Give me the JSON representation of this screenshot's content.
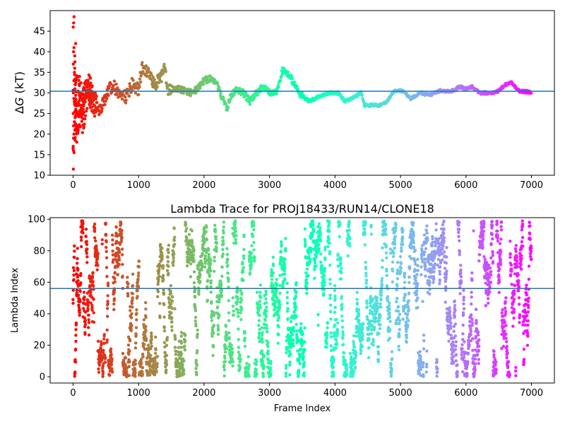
{
  "chart_data": [
    {
      "type": "scatter",
      "title": "",
      "xlabel": "",
      "ylabel": "ΔG (kT)",
      "ylabel_parts": {
        "delta": "Δ",
        "var": "G",
        "unit": " (kT)"
      },
      "xlim": [
        -350,
        7350
      ],
      "ylim": [
        10,
        50
      ],
      "xticks": [
        0,
        1000,
        2000,
        3000,
        4000,
        5000,
        6000,
        7000
      ],
      "yticks": [
        10,
        15,
        20,
        25,
        30,
        35,
        40,
        45
      ],
      "xtick_labels": [
        "0",
        "1000",
        "2000",
        "3000",
        "4000",
        "5000",
        "6000",
        "7000"
      ],
      "ytick_labels": [
        "10",
        "15",
        "20",
        "25",
        "30",
        "35",
        "40",
        "45"
      ],
      "reference_line": 30.4,
      "colormap": "rainbow (frame index, red → violet)",
      "colors": {
        "reference_line": "#1f77b4"
      },
      "trace_control_points": [
        [
          0,
          30
        ],
        [
          30,
          28
        ],
        [
          60,
          26
        ],
        [
          100,
          28
        ],
        [
          150,
          25
        ],
        [
          200,
          30
        ],
        [
          250,
          31
        ],
        [
          300,
          28
        ],
        [
          400,
          26
        ],
        [
          500,
          29
        ],
        [
          600,
          32
        ],
        [
          700,
          30
        ],
        [
          800,
          29
        ],
        [
          900,
          32
        ],
        [
          1000,
          31
        ],
        [
          1050,
          36
        ],
        [
          1150,
          35
        ],
        [
          1250,
          32
        ],
        [
          1350,
          34
        ],
        [
          1400,
          36
        ],
        [
          1450,
          31
        ],
        [
          1600,
          31
        ],
        [
          1800,
          30
        ],
        [
          1900,
          31
        ],
        [
          2000,
          33
        ],
        [
          2100,
          33.5
        ],
        [
          2200,
          32
        ],
        [
          2300,
          28
        ],
        [
          2350,
          26
        ],
        [
          2400,
          29
        ],
        [
          2500,
          31
        ],
        [
          2600,
          30
        ],
        [
          2700,
          28
        ],
        [
          2800,
          30
        ],
        [
          2900,
          31.5
        ],
        [
          3000,
          30
        ],
        [
          3100,
          30
        ],
        [
          3200,
          35.5
        ],
        [
          3300,
          34.5
        ],
        [
          3450,
          30
        ],
        [
          3600,
          28
        ],
        [
          3750,
          29
        ],
        [
          3900,
          30
        ],
        [
          4050,
          30
        ],
        [
          4150,
          28
        ],
        [
          4300,
          29
        ],
        [
          4400,
          30
        ],
        [
          4450,
          27
        ],
        [
          4700,
          27
        ],
        [
          4800,
          28
        ],
        [
          4900,
          30.5
        ],
        [
          5050,
          30.5
        ],
        [
          5150,
          28.5
        ],
        [
          5300,
          30
        ],
        [
          5450,
          29.5
        ],
        [
          5600,
          30.5
        ],
        [
          5800,
          30.5
        ],
        [
          5900,
          31.5
        ],
        [
          6000,
          31
        ],
        [
          6100,
          31.5
        ],
        [
          6200,
          30
        ],
        [
          6400,
          30
        ],
        [
          6500,
          30.5
        ],
        [
          6600,
          32
        ],
        [
          6700,
          32.5
        ],
        [
          6800,
          30.5
        ],
        [
          7000,
          30.2
        ]
      ],
      "early_scatter_y": [
        48.5,
        47,
        46,
        42,
        41,
        40,
        39,
        37,
        36,
        35,
        33,
        32,
        30,
        28,
        27,
        25,
        24,
        23,
        22,
        21,
        20,
        19,
        18.5,
        17,
        16.5,
        16,
        15.5,
        11.5
      ]
    },
    {
      "type": "scatter",
      "title": "Lambda Trace for PROJ18433/RUN14/CLONE18",
      "xlabel": "Frame Index",
      "ylabel": "Lambda Index",
      "xlim": [
        -350,
        7350
      ],
      "ylim": [
        -4,
        101
      ],
      "xticks": [
        0,
        1000,
        2000,
        3000,
        4000,
        5000,
        6000,
        7000
      ],
      "yticks": [
        0,
        20,
        40,
        60,
        80,
        100
      ],
      "xtick_labels": [
        "0",
        "1000",
        "2000",
        "3000",
        "4000",
        "5000",
        "6000",
        "7000"
      ],
      "ytick_labels": [
        "0",
        "20",
        "40",
        "60",
        "80",
        "100"
      ],
      "reference_line": 56,
      "y_range": [
        0,
        99
      ],
      "colormap": "rainbow (frame index, red → violet)",
      "colors": {
        "reference_line": "#1f77b4"
      }
    }
  ]
}
